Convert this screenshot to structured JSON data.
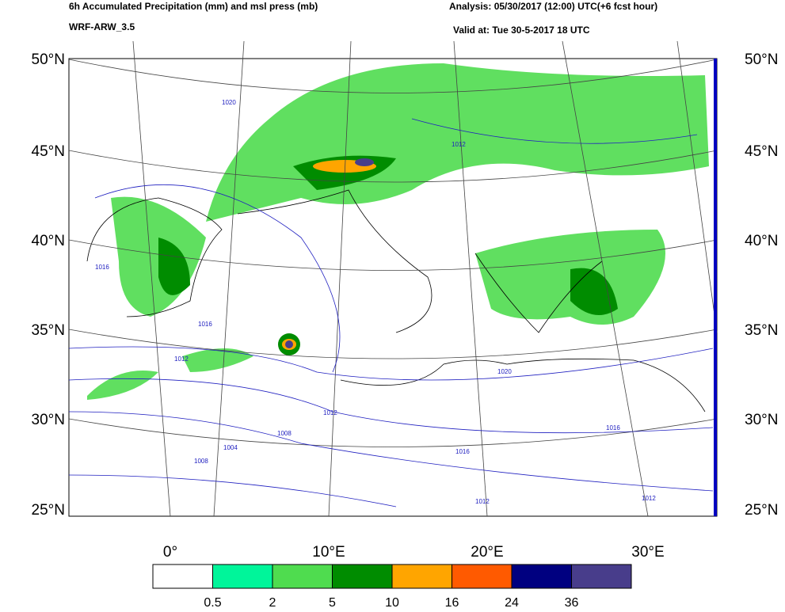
{
  "header": {
    "title": "6h Accumulated Precipitation (mm) and msl press (mb)",
    "model": "WRF-ARW_3.5",
    "analysis": "Analysis: 05/30/2017 (12:00) UTC(+6 fcst hour)",
    "valid": "Valid at: Tue 30-5-2017  18 UTC"
  },
  "map": {
    "lat_labels": [
      "50°N",
      "45°N",
      "40°N",
      "35°N",
      "30°N",
      "25°N"
    ],
    "lon_labels": [
      "0°",
      "10°E",
      "20°E",
      "30°E"
    ],
    "isobar_labels": [
      "1020",
      "1012",
      "1016",
      "1016",
      "1012",
      "1008",
      "1004",
      "1008",
      "1012",
      "1016",
      "1020",
      "1016",
      "1012",
      "1012"
    ]
  },
  "legend": {
    "colors": [
      "#ffffff",
      "#00f59a",
      "#4fdc4f",
      "#008c00",
      "#ffa500",
      "#ff5a00",
      "#000080",
      "#483d8b"
    ],
    "labels": [
      "0.5",
      "2",
      "5",
      "10",
      "16",
      "24",
      "36"
    ]
  }
}
